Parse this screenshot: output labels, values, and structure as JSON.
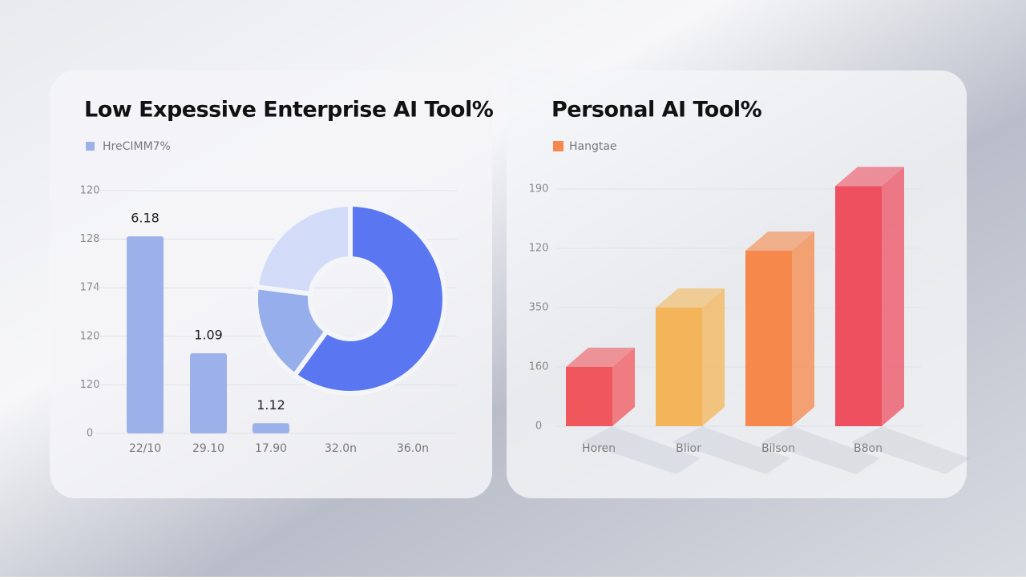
{
  "chart_data": [
    {
      "type": "bar",
      "title": "Low Expessive Enterprise AI Tool%",
      "categories": [
        "22/10",
        "29.10",
        "17.90",
        "32.0n",
        "36.0n"
      ],
      "series": [
        {
          "name": "HreCIMM7%",
          "color": "#9cb1ea",
          "values": [
            4.06,
            1.65,
            0.21,
            null,
            null
          ]
        }
      ],
      "annotations": [
        "6.18",
        "1.09",
        "1.12"
      ],
      "ylim": [
        0,
        5
      ],
      "yticks": [
        0,
        {
          "value": 1,
          "label": "120"
        },
        {
          "value": 2,
          "label": "120"
        },
        {
          "value": 3,
          "label": "174"
        },
        {
          "value": 4,
          "label": "128"
        },
        {
          "value": 5,
          "label": "120"
        }
      ],
      "grid": true
    },
    {
      "type": "pie",
      "values": [
        60,
        17,
        23
      ],
      "colors": [
        "#5a77f1",
        "#97aeec",
        "#d2dcf8"
      ],
      "donut": true
    },
    {
      "type": "bar3d",
      "title": "Personal AI Tool%",
      "categories": [
        "Horen",
        "Blior",
        "Bilson",
        "B8on"
      ],
      "series": [
        {
          "name": "Hangtae",
          "color": "#f5884a",
          "values": [
            1.0,
            2.0,
            2.96,
            4.05
          ]
        }
      ],
      "colors": [
        "#f0575c",
        "#f4b55a",
        "#f5884a",
        "#ee5060"
      ],
      "ylim": [
        0,
        4
      ],
      "yticks": [
        0,
        {
          "value": 1,
          "label": "160"
        },
        {
          "value": 2,
          "label": "350"
        },
        {
          "value": 3,
          "label": "120"
        },
        {
          "value": 4,
          "label": "190"
        }
      ],
      "grid": true
    }
  ]
}
